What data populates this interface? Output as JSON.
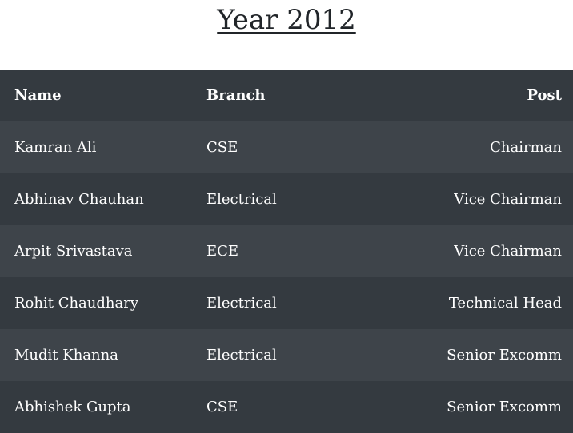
{
  "title": "Year 2012",
  "table": {
    "headers": {
      "name": "Name",
      "branch": "Branch",
      "post": "Post"
    },
    "rows": [
      {
        "name": "Kamran Ali",
        "branch": "CSE",
        "post": "Chairman"
      },
      {
        "name": "Abhinav Chauhan",
        "branch": "Electrical",
        "post": "Vice Chairman"
      },
      {
        "name": "Arpit Srivastava",
        "branch": "ECE",
        "post": "Vice Chairman"
      },
      {
        "name": "Rohit Chaudhary",
        "branch": "Electrical",
        "post": "Technical Head"
      },
      {
        "name": "Mudit Khanna",
        "branch": "Electrical",
        "post": "Senior Excomm"
      },
      {
        "name": "Abhishek Gupta",
        "branch": "CSE",
        "post": "Senior Excomm"
      }
    ]
  },
  "colors": {
    "header_bg": "#343a40",
    "row_light": "#3e444a",
    "row_dark": "#343a40",
    "text": "#ffffff"
  }
}
